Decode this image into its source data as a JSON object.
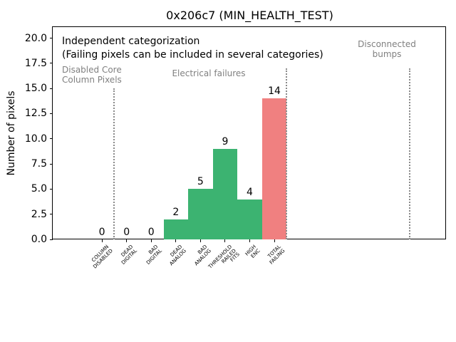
{
  "window": {
    "title": "0x206c7 (MIN_HEALTH_TEST)"
  },
  "annotations": {
    "independent": "Independent categorization",
    "failing_note": "(Failing pixels can be included in several categories)",
    "region_disabled": "Disabled Core\nColumn Pixels",
    "region_electrical": "Electrical failures",
    "region_disconnected": "Disconnected\nbumps"
  },
  "colors": {
    "bar_green": "#3cb371",
    "bar_red": "#f08080",
    "gray_text": "#808080",
    "separator": "#8a8a8a",
    "axis": "#000000",
    "background": "#ffffff"
  },
  "chart_data": {
    "type": "bar",
    "title": "0x206c7 (MIN_HEALTH_TEST)",
    "xlabel": "",
    "ylabel": "Number of pixels",
    "categories": [
      [
        "COLUMN",
        "DISABLED"
      ],
      [
        "DEAD",
        "DIGITAL"
      ],
      [
        "BAD",
        "DIGITAL"
      ],
      [
        "DEAD",
        "ANALOG"
      ],
      [
        "BAD",
        "ANALOG"
      ],
      [
        "THRESHOLD",
        "RAILED",
        "FITS"
      ],
      [
        "HIGH",
        "ENC"
      ],
      [
        "TOTAL",
        "FAILING"
      ]
    ],
    "values": [
      0,
      0,
      0,
      2,
      5,
      9,
      4,
      14
    ],
    "bar_colors": [
      "#3cb371",
      "#3cb371",
      "#3cb371",
      "#3cb371",
      "#3cb371",
      "#3cb371",
      "#3cb371",
      "#f08080"
    ],
    "bar_labels": [
      "0",
      "0",
      "0",
      "2",
      "5",
      "9",
      "4",
      "14"
    ],
    "yticks": [
      0,
      2.5,
      5,
      7.5,
      10,
      12.5,
      15,
      17.5,
      20
    ],
    "ylim": [
      0,
      21.1
    ],
    "xlim": [
      -2,
      14
    ],
    "grid": false,
    "legend": null,
    "separators": [
      {
        "x": 0.5,
        "ymax": 15
      },
      {
        "x": 7.5,
        "ymax": 17
      },
      {
        "x": 12.5,
        "ymax": 17
      }
    ]
  }
}
